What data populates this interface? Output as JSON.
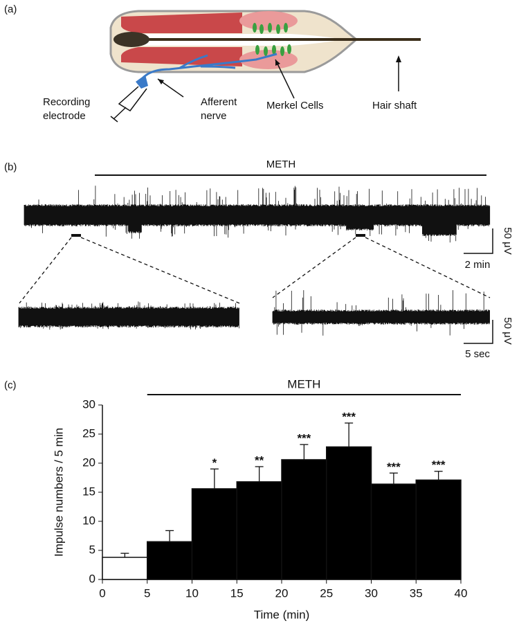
{
  "panels": {
    "a": "(a)",
    "b": "(b)",
    "c": "(c)"
  },
  "diagram": {
    "labels": {
      "recording": [
        "Recording",
        "electrode"
      ],
      "afferent": [
        "Afferent",
        "nerve"
      ],
      "merkel": "Merkel Cells",
      "hair": "Hair shaft"
    }
  },
  "traces": {
    "treatment": "METH",
    "scale_top": {
      "amplitude": "50 μV",
      "time": "2 min"
    },
    "scale_bottom": {
      "amplitude": "50 μV",
      "time": "5 sec"
    }
  },
  "chart_data": {
    "type": "histogram",
    "xlabel": "Time (min)",
    "ylabel": "Impulse numbers / 5 min",
    "bins": [
      0,
      5,
      10,
      15,
      20,
      25,
      30,
      35,
      40
    ],
    "values": [
      3.8,
      6.5,
      15.6,
      16.8,
      20.6,
      22.8,
      16.4,
      17.1
    ],
    "errors": [
      0.7,
      1.9,
      3.4,
      2.6,
      2.6,
      4.1,
      1.9,
      1.5
    ],
    "significance": [
      null,
      null,
      "*",
      "**",
      "***",
      "***",
      "***",
      "***"
    ],
    "colors": [
      "#ffffff",
      "#000000",
      "#000000",
      "#000000",
      "#000000",
      "#000000",
      "#000000",
      "#000000"
    ],
    "annotation": {
      "text": "METH",
      "from": 5,
      "to": 40
    },
    "xlim": [
      0,
      40
    ],
    "xticks": [
      0,
      5,
      10,
      15,
      20,
      25,
      30,
      35,
      40
    ],
    "ylim": [
      0,
      30
    ],
    "yticks": [
      0,
      5,
      10,
      15,
      20,
      25,
      30
    ]
  }
}
